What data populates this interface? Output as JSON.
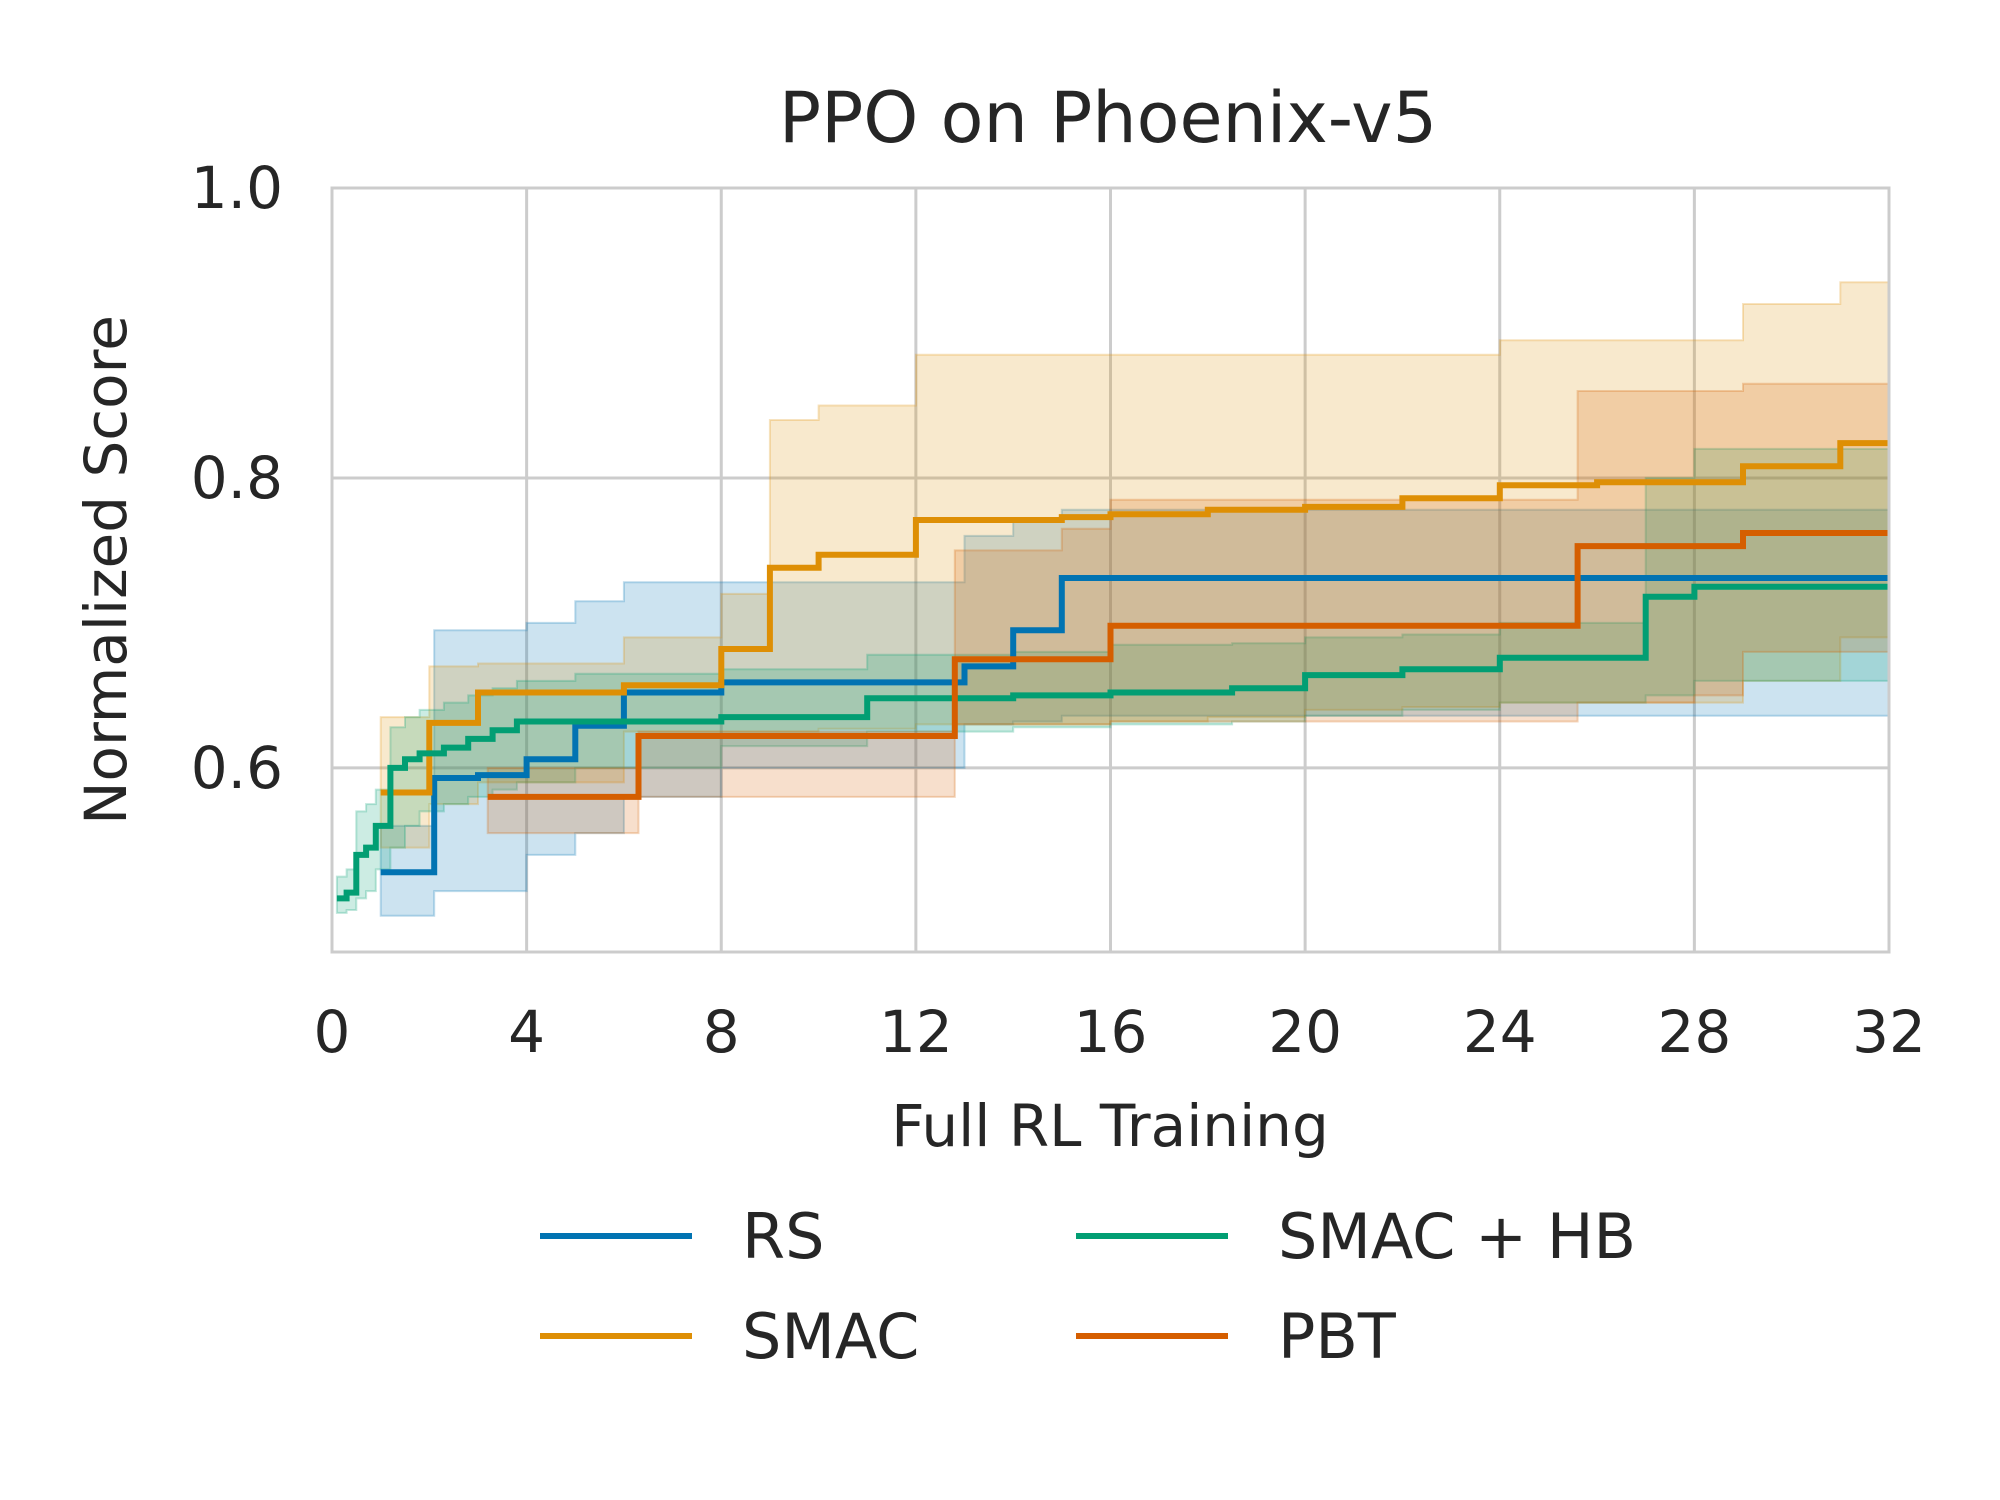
{
  "chart_data": {
    "type": "line",
    "title": "PPO on Phoenix-v5",
    "xlabel": "Full RL Training",
    "ylabel": "Normalized Score",
    "xlim": [
      0,
      32
    ],
    "ylim": [
      0.473,
      1.0
    ],
    "xticks": [
      0,
      4,
      8,
      12,
      16,
      20,
      24,
      28,
      32
    ],
    "yticks": [
      0.6,
      0.8,
      1.0
    ],
    "ytick_labels": [
      "0.6",
      "0.8",
      "1.0"
    ],
    "grid": true,
    "legend_position": "bottom",
    "series": [
      {
        "name": "RS",
        "color": "#0173b2",
        "x": [
          1.0,
          2.1,
          3.0,
          4.0,
          5.0,
          6.0,
          8.0,
          12.0,
          13.0,
          14.0,
          15.0,
          32.0
        ],
        "y": [
          0.528,
          0.593,
          0.595,
          0.606,
          0.629,
          0.652,
          0.659,
          0.659,
          0.67,
          0.695,
          0.731,
          0.731
        ],
        "lower": [
          0.498,
          0.515,
          0.515,
          0.54,
          0.555,
          0.58,
          0.6,
          0.6,
          0.63,
          0.632,
          0.636,
          0.688
        ],
        "upper": [
          0.56,
          0.695,
          0.695,
          0.7,
          0.715,
          0.728,
          0.728,
          0.728,
          0.76,
          0.772,
          0.778,
          0.778
        ]
      },
      {
        "name": "SMAC",
        "color": "#de8f05",
        "x": [
          1.0,
          2.0,
          3.0,
          6.0,
          8.0,
          9.0,
          10.0,
          12.0,
          15.0,
          16.0,
          18.0,
          20.0,
          22.0,
          24.0,
          26.0,
          29.0,
          31.0,
          32.0
        ],
        "y": [
          0.583,
          0.631,
          0.652,
          0.657,
          0.682,
          0.738,
          0.747,
          0.771,
          0.773,
          0.775,
          0.778,
          0.78,
          0.786,
          0.795,
          0.797,
          0.808,
          0.824,
          0.824
        ],
        "lower": [
          0.545,
          0.575,
          0.59,
          0.625,
          0.625,
          0.625,
          0.627,
          0.63,
          0.63,
          0.632,
          0.635,
          0.64,
          0.642,
          0.645,
          0.645,
          0.66,
          0.69,
          0.7
        ],
        "upper": [
          0.635,
          0.67,
          0.672,
          0.69,
          0.72,
          0.84,
          0.85,
          0.885,
          0.885,
          0.885,
          0.885,
          0.885,
          0.885,
          0.895,
          0.895,
          0.92,
          0.935,
          0.93
        ]
      },
      {
        "name": "SMAC + HB",
        "color": "#029e73",
        "x": [
          0.1,
          0.3,
          0.5,
          0.7,
          0.9,
          1.2,
          1.5,
          1.8,
          2.3,
          2.8,
          3.3,
          3.8,
          5.0,
          8.0,
          11.0,
          14.0,
          16.0,
          18.5,
          20.0,
          22.0,
          24.0,
          27.0,
          28.0,
          32.0
        ],
        "y": [
          0.51,
          0.514,
          0.54,
          0.545,
          0.56,
          0.6,
          0.606,
          0.61,
          0.614,
          0.62,
          0.626,
          0.632,
          0.632,
          0.635,
          0.648,
          0.65,
          0.652,
          0.655,
          0.664,
          0.668,
          0.676,
          0.718,
          0.725,
          0.725
        ],
        "lower": [
          0.5,
          0.502,
          0.51,
          0.515,
          0.53,
          0.545,
          0.56,
          0.57,
          0.575,
          0.58,
          0.585,
          0.59,
          0.6,
          0.615,
          0.625,
          0.628,
          0.63,
          0.632,
          0.636,
          0.64,
          0.645,
          0.65,
          0.66,
          0.665
        ],
        "upper": [
          0.525,
          0.53,
          0.57,
          0.575,
          0.585,
          0.628,
          0.635,
          0.64,
          0.645,
          0.65,
          0.655,
          0.66,
          0.665,
          0.668,
          0.678,
          0.68,
          0.685,
          0.686,
          0.69,
          0.692,
          0.7,
          0.8,
          0.82,
          0.82
        ]
      },
      {
        "name": "PBT",
        "color": "#d55e00",
        "x": [
          3.2,
          6.3,
          12.8,
          15.0,
          16.0,
          25.6,
          28.0,
          29.0,
          32.0
        ],
        "y": [
          0.58,
          0.622,
          0.675,
          0.675,
          0.698,
          0.753,
          0.753,
          0.762,
          0.762
        ],
        "lower": [
          0.555,
          0.58,
          0.63,
          0.63,
          0.632,
          0.645,
          0.65,
          0.68,
          0.7
        ],
        "upper": [
          0.6,
          0.625,
          0.75,
          0.765,
          0.785,
          0.86,
          0.86,
          0.865,
          0.86
        ]
      }
    ]
  }
}
